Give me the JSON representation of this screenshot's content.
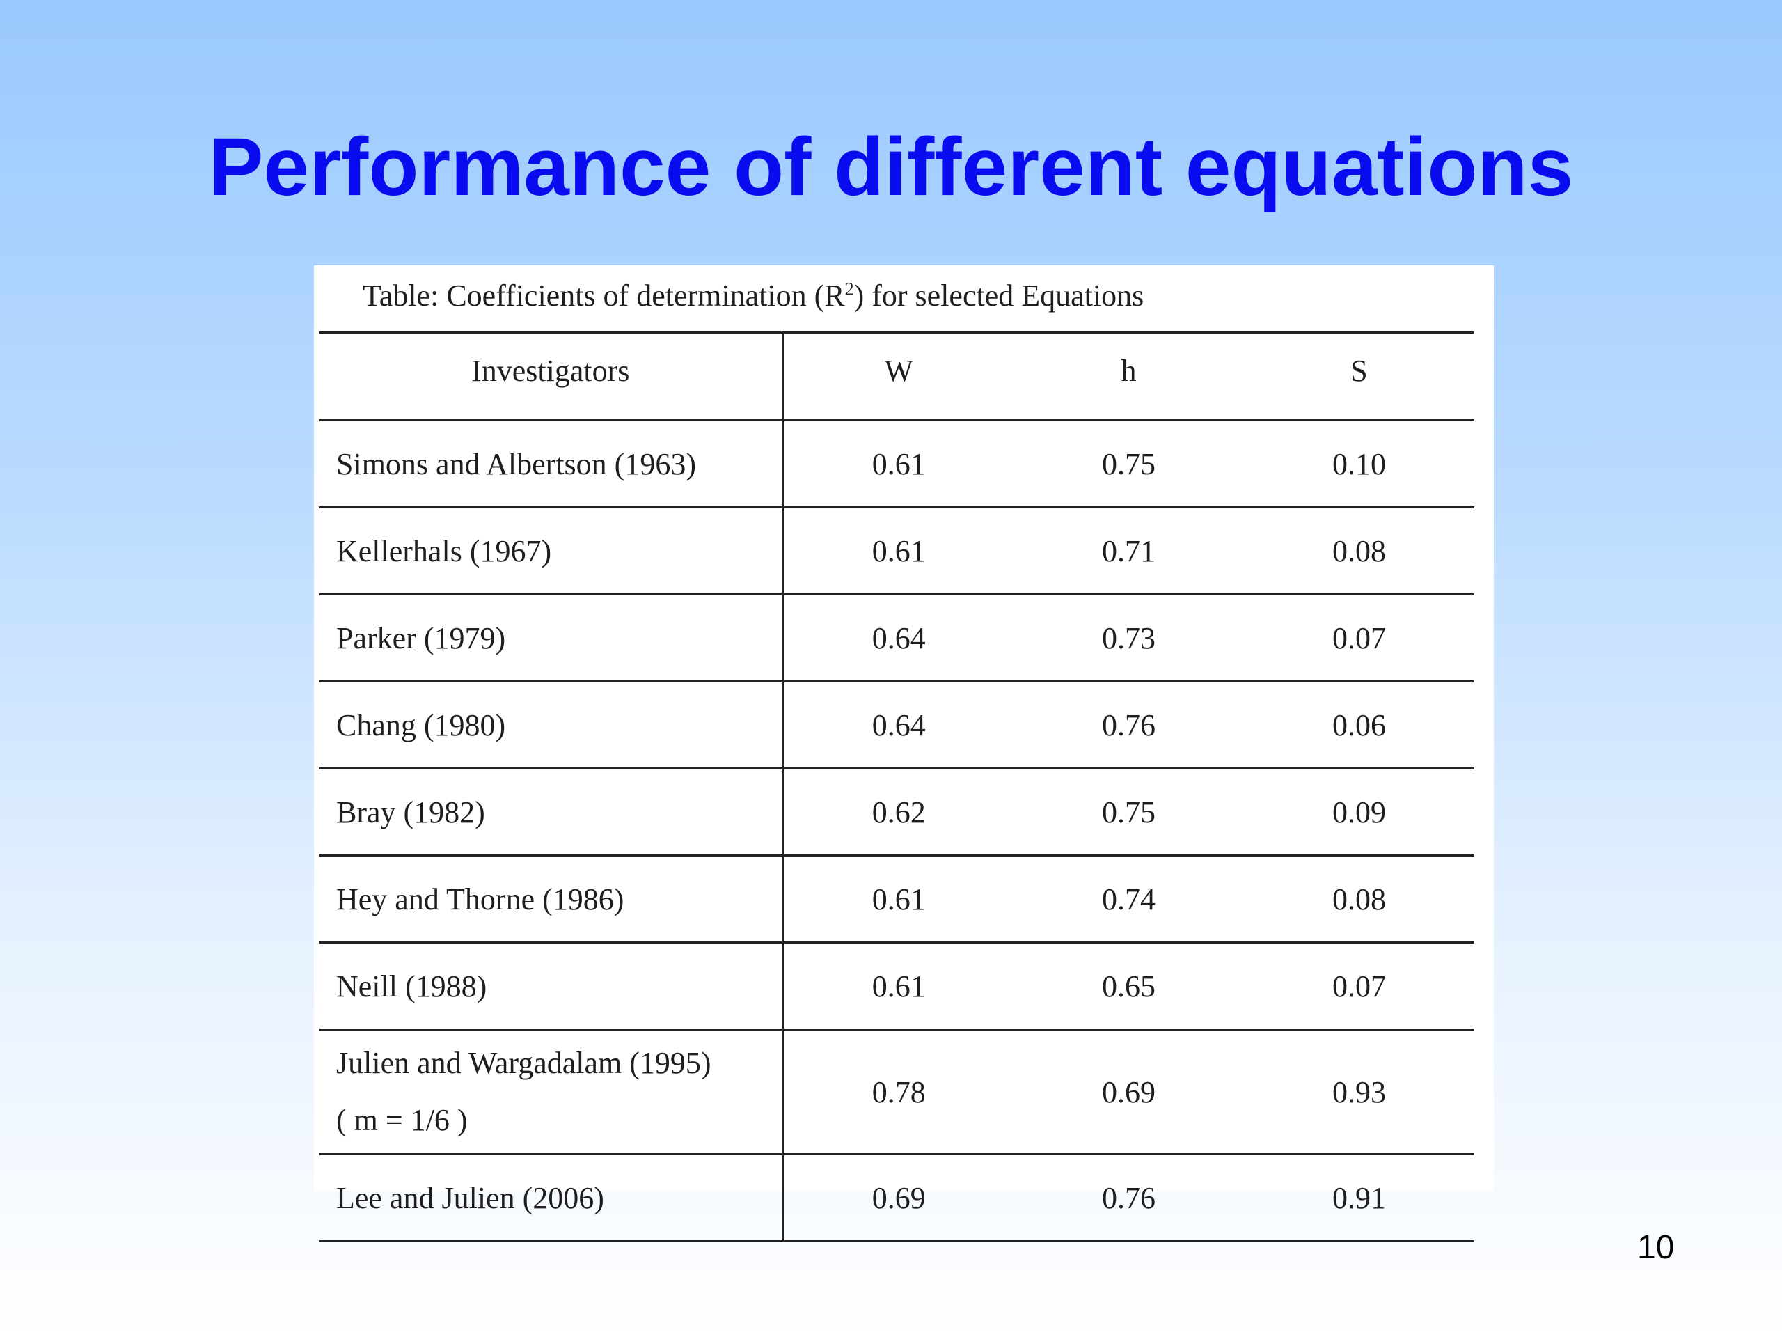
{
  "slide": {
    "title": "Performance of different equations",
    "page_number": "10"
  },
  "table": {
    "caption_prefix": "Table: Coefficients of determination (R",
    "caption_superscript": "2",
    "caption_suffix": ") for selected Equations",
    "headers": [
      "Investigators",
      "W",
      "h",
      "S"
    ],
    "rows": [
      {
        "investigator": "Simons and Albertson (1963)",
        "W": "0.61",
        "h": "0.75",
        "S": "0.10"
      },
      {
        "investigator": "Kellerhals (1967)",
        "W": "0.61",
        "h": "0.71",
        "S": "0.08"
      },
      {
        "investigator": "Parker (1979)",
        "W": "0.64",
        "h": "0.73",
        "S": "0.07"
      },
      {
        "investigator": "Chang (1980)",
        "W": "0.64",
        "h": "0.76",
        "S": "0.06"
      },
      {
        "investigator": "Bray (1982)",
        "W": "0.62",
        "h": "0.75",
        "S": "0.09"
      },
      {
        "investigator": "Hey and Thorne (1986)",
        "W": "0.61",
        "h": "0.74",
        "S": "0.08"
      },
      {
        "investigator": "Neill (1988)",
        "W": "0.61",
        "h": "0.65",
        "S": "0.07"
      },
      {
        "investigator": "Julien and Wargadalam (1995)",
        "investigator_note": "( m = 1/6 )",
        "W": "0.78",
        "h": "0.69",
        "S": "0.93"
      },
      {
        "investigator": "Lee and Julien (2006)",
        "W": "0.69",
        "h": "0.76",
        "S": "0.91"
      }
    ]
  },
  "colors": {
    "title": "#0a0cf0",
    "background_top": "#99c9ff",
    "background_bottom": "#ffffff",
    "table_background": "#ffffff",
    "rule_lines": "#222222"
  }
}
